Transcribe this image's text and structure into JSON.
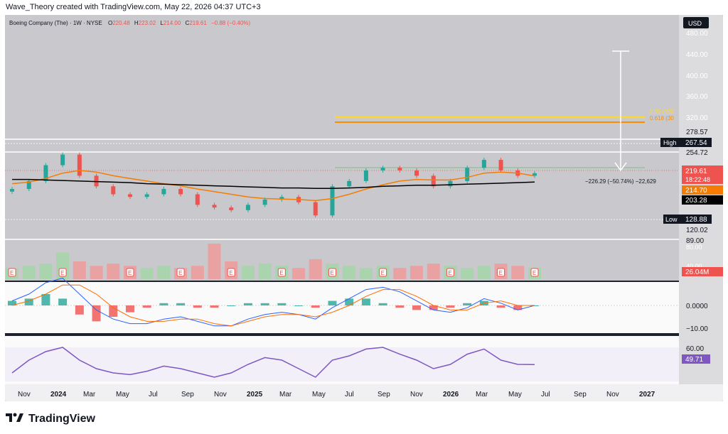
{
  "header": {
    "credit": "Wave_Theory created with TradingView.com, May 22, 2026 04:37 UTC+3"
  },
  "legend": {
    "symbol": "Boeing Company (The) · 1W · NYSE",
    "o_label": "O",
    "o_value": "220.48",
    "h_label": "H",
    "h_value": "223.02",
    "l_label": "L",
    "l_value": "214.00",
    "c_label": "C",
    "c_value": "219.61",
    "change": "−0.88 (−0.40%)"
  },
  "currency": "USD",
  "price_axis": [
    "480.00",
    "440.00",
    "400.00",
    "360.00",
    "320.00",
    "280.00"
  ],
  "axis_tags": {
    "high_label": "High",
    "high_value": "267.54",
    "low_label": "Low",
    "low_value": "128.88",
    "v1": "278.57",
    "v2": "254.72",
    "price": "219.61",
    "countdown": "18:22:48",
    "ema": "214.70",
    "sma": "203.28",
    "v3": "120.02",
    "v4": "89.00",
    "volume": "26.04M"
  },
  "fib_labels": {
    "a": "0.65 (320.",
    "b": "0.618 (30"
  },
  "measure_label": "−226.29 (−50.74%) −22,629",
  "macd_axis": {
    "zero": "0.0000",
    "minus10": "−10.00"
  },
  "rsi_axis": {
    "top": "60.00",
    "value": "49.71"
  },
  "volume_axis": {
    "a": "80.00",
    "b": "40.00"
  },
  "time_axis": [
    "Nov",
    "2024",
    "Mar",
    "May",
    "Jul",
    "Sep",
    "Nov",
    "2025",
    "Mar",
    "May",
    "Jul",
    "Sep",
    "Nov",
    "2026",
    "Mar",
    "May",
    "Jul",
    "Sep",
    "Nov",
    "2027"
  ],
  "earnings_marker": "E",
  "footer": {
    "brand": "TradingView"
  },
  "colors": {
    "up": "#26a69a",
    "down": "#ef5350",
    "ema": "#f57c00",
    "sma": "#000000",
    "fib_a": "#ffeb3b",
    "fib_b": "#ff9800",
    "rsi": "#7e57c2",
    "macd": "#2962ff",
    "signal": "#ff6d00"
  },
  "chart_data": [
    {
      "type": "candlestick",
      "title": "Boeing Company (The) · 1W · NYSE",
      "ylim": [
        90,
        480
      ],
      "x": [
        "2023-10",
        "2023-11",
        "2023-12",
        "2024-01",
        "2024-02",
        "2024-03",
        "2024-04",
        "2024-05",
        "2024-06",
        "2024-07",
        "2024-08",
        "2024-09",
        "2024-10",
        "2024-11",
        "2024-12",
        "2025-01",
        "2025-02",
        "2025-03",
        "2025-04",
        "2025-05",
        "2025-06",
        "2025-07",
        "2025-08",
        "2025-09",
        "2025-10",
        "2025-11",
        "2025-12",
        "2026-01",
        "2026-02",
        "2026-03",
        "2026-04",
        "2026-05"
      ],
      "series": [
        {
          "values": [
            190,
            205,
            235,
            255,
            215,
            195,
            180,
            175,
            180,
            190,
            180,
            160,
            155,
            150,
            160,
            170,
            175,
            165,
            140,
            195,
            205,
            225,
            230,
            225,
            215,
            195,
            205,
            230,
            245,
            225,
            215,
            219.61
          ]
        },
        {
          "name": "EMA",
          "values": [
            200,
            203,
            210,
            220,
            225,
            222,
            215,
            210,
            205,
            200,
            196,
            190,
            185,
            180,
            175,
            172,
            171,
            170,
            168,
            172,
            180,
            190,
            198,
            205,
            208,
            207,
            207,
            212,
            220,
            222,
            220,
            214.7
          ]
        },
        {
          "name": "SMA",
          "values": [
            208,
            208,
            207,
            206,
            205,
            204,
            203,
            202,
            200,
            199,
            198,
            197,
            196,
            195,
            194,
            193,
            192,
            192,
            191,
            191,
            192,
            193,
            195,
            196,
            197,
            197,
            198,
            199,
            200,
            201,
            202,
            203.28
          ]
        }
      ]
    },
    {
      "type": "bar",
      "title": "Volume",
      "ylim": [
        0,
        80
      ],
      "x": [
        "2023-10",
        "2023-11",
        "2023-12",
        "2024-01",
        "2024-02",
        "2024-03",
        "2024-04",
        "2024-05",
        "2024-06",
        "2024-07",
        "2024-08",
        "2024-09",
        "2024-10",
        "2024-11",
        "2024-12",
        "2025-01",
        "2025-02",
        "2025-03",
        "2025-04",
        "2025-05",
        "2025-06",
        "2025-07",
        "2025-08",
        "2025-09",
        "2025-10",
        "2025-11",
        "2025-12",
        "2026-01",
        "2026-02",
        "2026-03",
        "2026-04",
        "2026-05"
      ],
      "values": [
        25,
        30,
        35,
        60,
        40,
        30,
        35,
        30,
        25,
        30,
        25,
        30,
        80,
        40,
        30,
        35,
        30,
        25,
        45,
        35,
        30,
        25,
        30,
        25,
        30,
        35,
        30,
        25,
        30,
        35,
        30,
        26.04
      ]
    },
    {
      "type": "line",
      "title": "MACD",
      "series": [
        {
          "name": "MACD",
          "values": [
            2,
            5,
            10,
            12,
            5,
            -2,
            -6,
            -8,
            -8,
            -6,
            -5,
            -7,
            -9,
            -9,
            -6,
            -4,
            -3,
            -4,
            -6,
            -1,
            3,
            7,
            8,
            6,
            2,
            -2,
            -3,
            -1,
            3,
            1,
            -2,
            0
          ]
        },
        {
          "name": "Signal",
          "values": [
            0,
            2,
            5,
            9,
            9,
            5,
            -1,
            -5,
            -7,
            -7,
            -6,
            -6,
            -8,
            -9,
            -7,
            -5,
            -4,
            -4,
            -5,
            -3,
            0,
            4,
            7,
            7,
            4,
            0,
            -2,
            -2,
            1,
            2,
            0,
            0
          ]
        }
      ]
    },
    {
      "type": "line",
      "title": "RSI",
      "series": [
        {
          "name": "RSI",
          "values": [
            40,
            55,
            65,
            70,
            55,
            45,
            40,
            38,
            42,
            48,
            45,
            40,
            35,
            40,
            50,
            58,
            55,
            45,
            35,
            55,
            60,
            68,
            70,
            62,
            55,
            45,
            50,
            62,
            68,
            55,
            50,
            49.71
          ]
        }
      ]
    }
  ]
}
